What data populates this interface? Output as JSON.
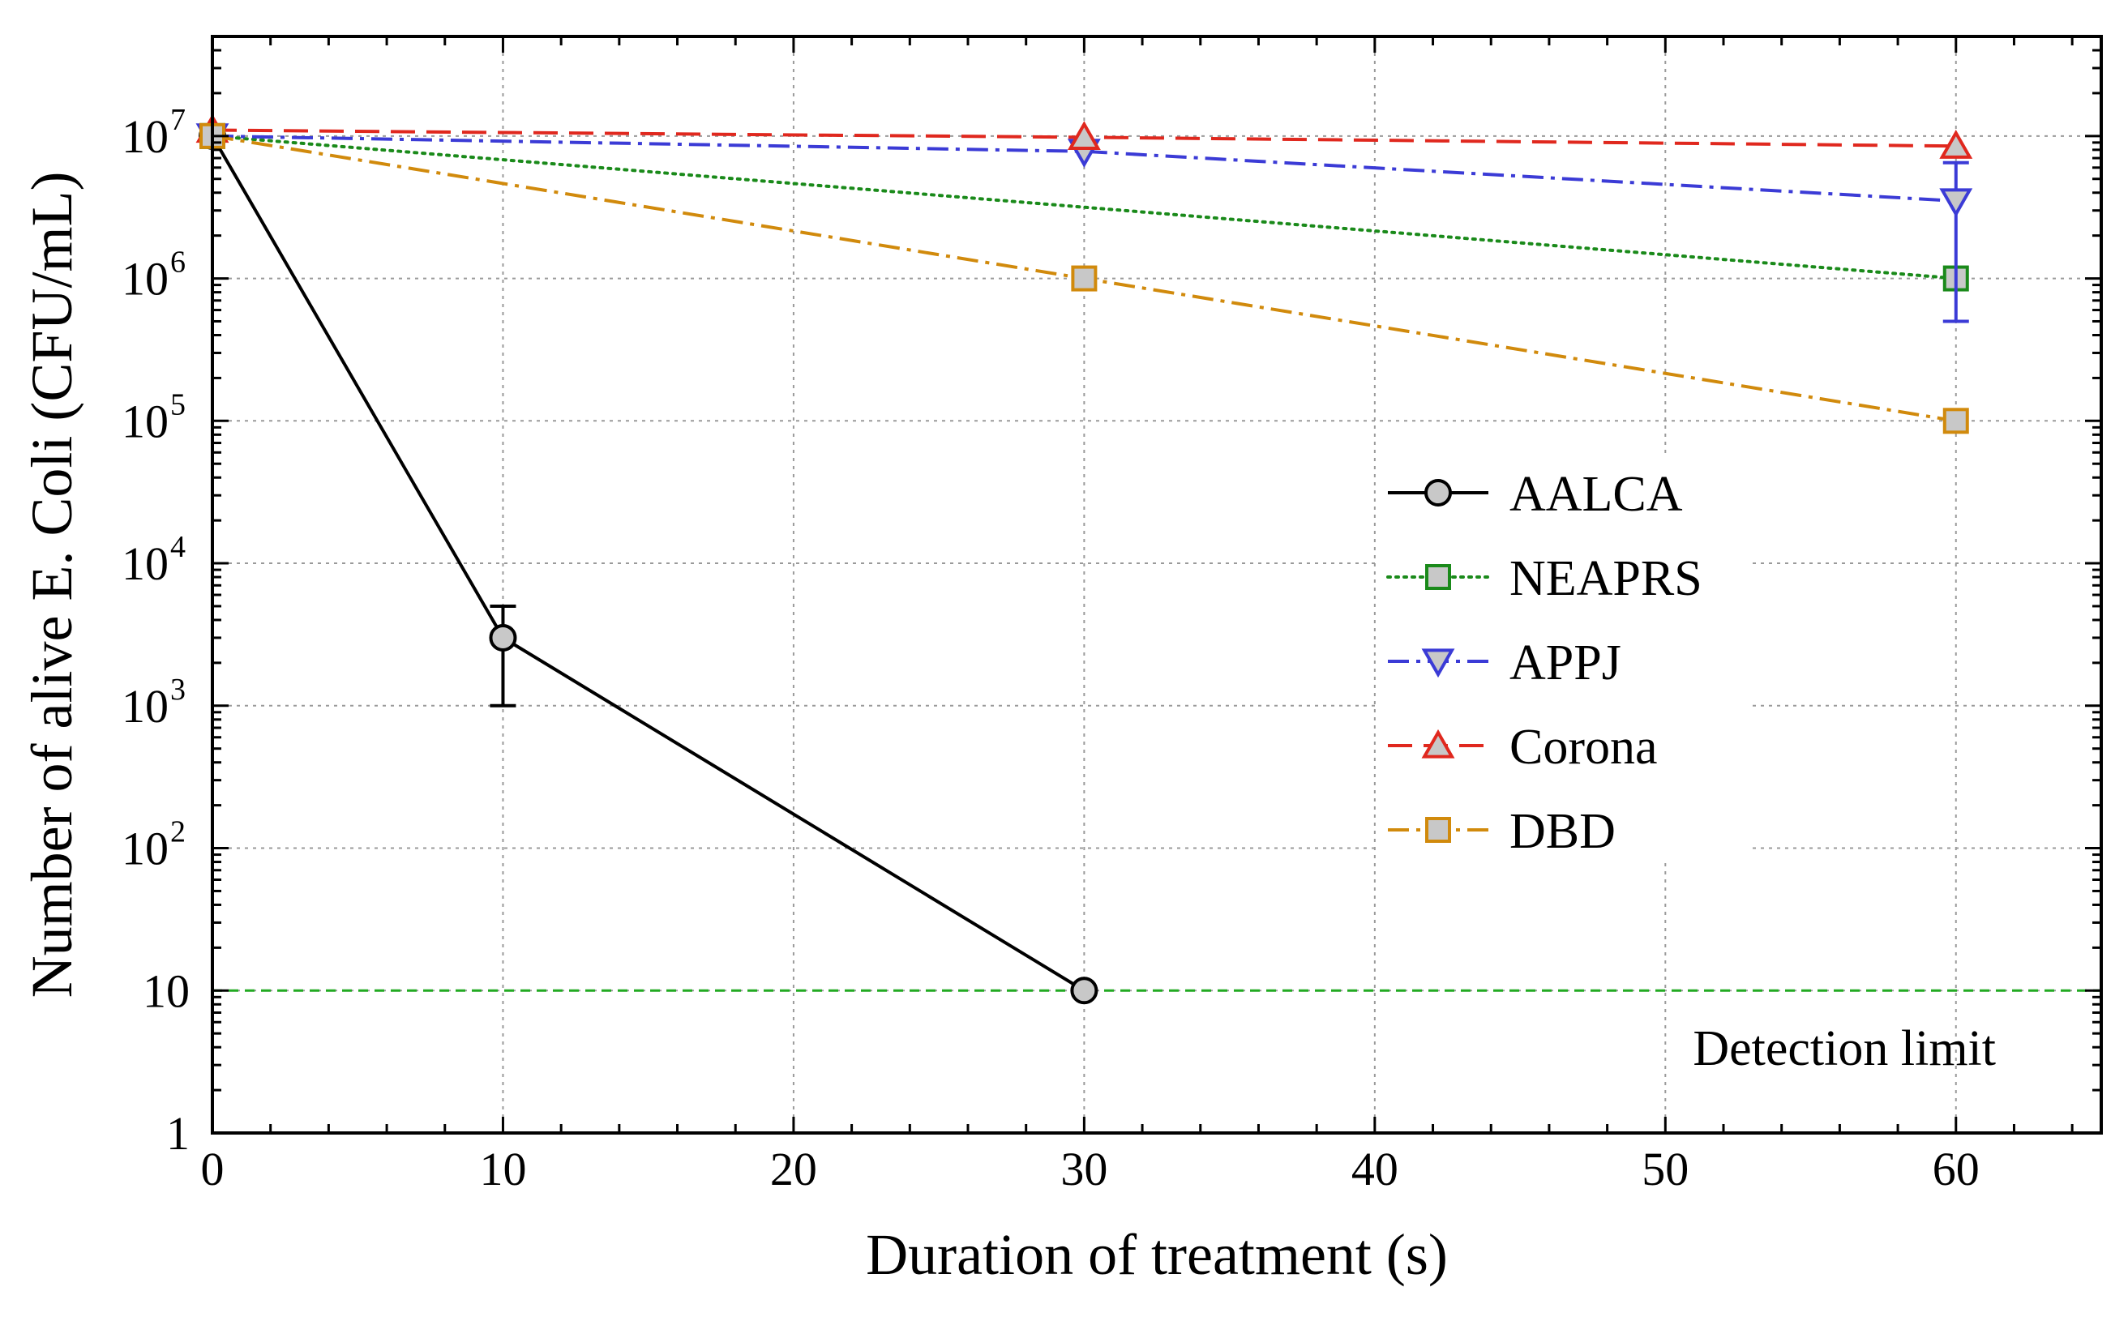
{
  "chart_data": {
    "type": "line",
    "title": "",
    "xlabel": "Duration of treatment (s)",
    "ylabel": "Number of alive E. Coli (CFU/mL)",
    "xlim": [
      0,
      65
    ],
    "ylim": [
      1,
      50000000
    ],
    "yscale": "log",
    "grid": true,
    "x_ticks": [
      0,
      10,
      20,
      30,
      40,
      50,
      60
    ],
    "x_tick_labels": [
      "0",
      "10",
      "20",
      "30",
      "40",
      "50",
      "60"
    ],
    "y_ticks": [
      {
        "value": 1,
        "base": "1",
        "exp": ""
      },
      {
        "value": 10,
        "base": "10",
        "exp": ""
      },
      {
        "value": 100,
        "base": "10",
        "exp": "2"
      },
      {
        "value": 1000,
        "base": "10",
        "exp": "3"
      },
      {
        "value": 10000,
        "base": "10",
        "exp": "4"
      },
      {
        "value": 100000,
        "base": "10",
        "exp": "5"
      },
      {
        "value": 1000000,
        "base": "10",
        "exp": "6"
      },
      {
        "value": 10000000,
        "base": "10",
        "exp": "7"
      }
    ],
    "legend_position": "center-right",
    "series": [
      {
        "name": "AALCA",
        "color": "#000000",
        "marker": "circle",
        "dash": "solid",
        "x": [
          0,
          10,
          30
        ],
        "y": [
          10000000,
          3000,
          10
        ],
        "errors": [
          {
            "x": 10,
            "low": 1000,
            "high": 5000
          }
        ]
      },
      {
        "name": "NEAPRS",
        "color": "#1a8a1a",
        "marker": "square",
        "dash": "dotted",
        "x": [
          0,
          60
        ],
        "y": [
          10000000,
          1000000
        ],
        "errors": []
      },
      {
        "name": "APPJ",
        "color": "#3b3bd6",
        "marker": "triangle-down",
        "dash": "dashdot",
        "x": [
          0,
          30,
          60
        ],
        "y": [
          10000000,
          7800000,
          3500000
        ],
        "errors": [
          {
            "x": 60,
            "low": 500000,
            "high": 6500000
          }
        ]
      },
      {
        "name": "Corona",
        "color": "#e0281e",
        "marker": "triangle-up",
        "dash": "dashed",
        "x": [
          0,
          30,
          60
        ],
        "y": [
          11000000,
          9800000,
          8500000
        ],
        "errors": []
      },
      {
        "name": "DBD",
        "color": "#d18a0c",
        "marker": "square",
        "dash": "dashdot",
        "x": [
          0,
          30,
          60
        ],
        "y": [
          10000000,
          1000000,
          100000
        ],
        "errors": []
      }
    ],
    "reference_line": {
      "y": 10,
      "label": "Detection limit",
      "color": "#22aa22"
    }
  }
}
